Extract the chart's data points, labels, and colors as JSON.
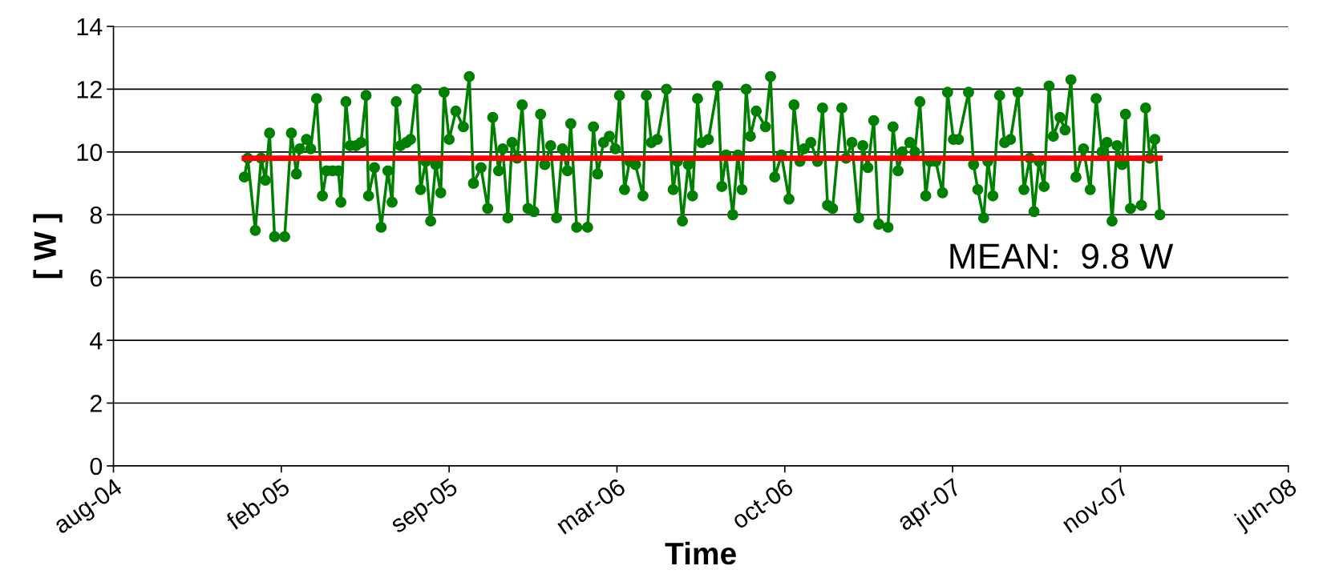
{
  "chart_data": {
    "type": "line",
    "xlabel": "Time",
    "ylabel": "[ W ]",
    "annotations": [
      "MEAN:  9.8 W"
    ],
    "xlim": [
      "2004-08-01",
      "2008-06-01"
    ],
    "xticks": [
      {
        "value": "2004-08-01",
        "label": "aug-04"
      },
      {
        "value": "2005-02-17",
        "label": "feb-05"
      },
      {
        "value": "2005-09-05",
        "label": "sep-05"
      },
      {
        "value": "2006-03-24",
        "label": "mar-06"
      },
      {
        "value": "2006-10-10",
        "label": "oct-06"
      },
      {
        "value": "2007-04-28",
        "label": "apr-07"
      },
      {
        "value": "2007-11-14",
        "label": "nov-07"
      },
      {
        "value": "2008-06-01",
        "label": "jun-08"
      }
    ],
    "ylim": [
      0,
      14
    ],
    "yticks": [
      0,
      2,
      4,
      6,
      8,
      10,
      12,
      14
    ],
    "grid": "y",
    "series": [
      {
        "color": "#008000",
        "marker": "circle",
        "line_style": "solid",
        "x": [
          "2005-01-04",
          "2005-01-08",
          "2005-01-17",
          "2005-01-24",
          "2005-01-29",
          "2005-02-03",
          "2005-02-09",
          "2005-02-21",
          "2005-03-01",
          "2005-03-07",
          "2005-03-11",
          "2005-03-19",
          "2005-03-24",
          "2005-03-31",
          "2005-04-07",
          "2005-04-12",
          "2005-04-19",
          "2005-04-26",
          "2005-04-29",
          "2005-05-05",
          "2005-05-10",
          "2005-05-17",
          "2005-05-23",
          "2005-05-29",
          "2005-06-01",
          "2005-06-08",
          "2005-06-16",
          "2005-06-24",
          "2005-06-29",
          "2005-07-04",
          "2005-07-09",
          "2005-07-16",
          "2005-07-21",
          "2005-07-28",
          "2005-08-02",
          "2005-08-08",
          "2005-08-14",
          "2005-08-20",
          "2005-08-26",
          "2005-08-30",
          "2005-09-05",
          "2005-09-13",
          "2005-09-22",
          "2005-09-29",
          "2005-10-04",
          "2005-10-13",
          "2005-10-21",
          "2005-10-27",
          "2005-11-03",
          "2005-11-08",
          "2005-11-14",
          "2005-11-19",
          "2005-11-25",
          "2005-12-01",
          "2005-12-08",
          "2005-12-15",
          "2005-12-23",
          "2005-12-28",
          "2006-01-04",
          "2006-01-11",
          "2006-01-18",
          "2006-01-24",
          "2006-01-28",
          "2006-02-04",
          "2006-02-17",
          "2006-02-24",
          "2006-03-01",
          "2006-03-08",
          "2006-03-15",
          "2006-03-22",
          "2006-03-27",
          "2006-04-02",
          "2006-04-08",
          "2006-04-15",
          "2006-04-24",
          "2006-04-28",
          "2006-05-04",
          "2006-05-11",
          "2006-05-22",
          "2006-05-30",
          "2006-06-04",
          "2006-06-10",
          "2006-06-17",
          "2006-06-22",
          "2006-06-28",
          "2006-07-03",
          "2006-07-11",
          "2006-07-22",
          "2006-07-27",
          "2006-08-01",
          "2006-08-09",
          "2006-08-15",
          "2006-08-20",
          "2006-08-25",
          "2006-08-30",
          "2006-09-06",
          "2006-09-17",
          "2006-09-23",
          "2006-09-28",
          "2006-10-06",
          "2006-10-15",
          "2006-10-21",
          "2006-10-28",
          "2006-11-02",
          "2006-11-10",
          "2006-11-18",
          "2006-11-24",
          "2006-11-30",
          "2006-12-06",
          "2006-12-17",
          "2006-12-22",
          "2006-12-29",
          "2007-01-06",
          "2007-01-11",
          "2007-01-17",
          "2007-01-24",
          "2007-01-30",
          "2007-02-10",
          "2007-02-16",
          "2007-02-22",
          "2007-02-27",
          "2007-03-08",
          "2007-03-14",
          "2007-03-20",
          "2007-03-27",
          "2007-04-01",
          "2007-04-08",
          "2007-04-16",
          "2007-04-22",
          "2007-04-29",
          "2007-05-05",
          "2007-05-17",
          "2007-05-23",
          "2007-05-28",
          "2007-06-04",
          "2007-06-09",
          "2007-06-15",
          "2007-06-23",
          "2007-06-29",
          "2007-07-06",
          "2007-07-15",
          "2007-07-22",
          "2007-07-29",
          "2007-08-03",
          "2007-08-09",
          "2007-08-15",
          "2007-08-21",
          "2007-08-26",
          "2007-09-03",
          "2007-09-09",
          "2007-09-16",
          "2007-09-22",
          "2007-10-01",
          "2007-10-09",
          "2007-10-16",
          "2007-10-23",
          "2007-10-29",
          "2007-11-04",
          "2007-11-10",
          "2007-11-16",
          "2007-11-20",
          "2007-11-26",
          "2007-12-09",
          "2007-12-14",
          "2007-12-19",
          "2007-12-25",
          "2007-12-31"
        ],
        "values": [
          9.2,
          9.8,
          7.5,
          9.8,
          9.1,
          10.6,
          7.3,
          7.3,
          10.6,
          9.3,
          10.1,
          10.4,
          10.1,
          11.7,
          8.6,
          9.4,
          9.4,
          9.4,
          8.4,
          11.6,
          10.2,
          10.2,
          10.3,
          11.8,
          8.6,
          9.5,
          7.6,
          9.4,
          8.4,
          11.6,
          10.2,
          10.3,
          10.4,
          12.0,
          8.8,
          9.7,
          7.8,
          9.6,
          8.7,
          11.9,
          10.4,
          11.3,
          10.8,
          12.4,
          9.0,
          9.5,
          8.2,
          11.1,
          9.4,
          10.1,
          7.9,
          10.3,
          9.8,
          11.5,
          8.2,
          8.1,
          11.2,
          9.6,
          10.2,
          7.9,
          10.1,
          9.4,
          10.9,
          7.6,
          7.6,
          10.8,
          9.3,
          10.3,
          10.5,
          10.1,
          11.8,
          8.8,
          9.7,
          9.6,
          8.6,
          11.8,
          10.3,
          10.4,
          12.0,
          8.8,
          9.7,
          7.8,
          9.6,
          8.6,
          11.7,
          10.3,
          10.4,
          12.1,
          8.9,
          9.9,
          8.0,
          9.9,
          8.8,
          12.0,
          10.5,
          11.3,
          10.8,
          12.4,
          9.2,
          9.9,
          8.5,
          11.5,
          9.7,
          10.1,
          10.3,
          9.7,
          11.4,
          8.3,
          8.2,
          11.4,
          9.8,
          10.3,
          7.9,
          10.2,
          9.5,
          11.0,
          7.7,
          7.6,
          10.8,
          9.4,
          10.0,
          10.3,
          10.0,
          11.6,
          8.6,
          9.7,
          9.7,
          8.7,
          11.9,
          10.4,
          10.4,
          11.9,
          9.6,
          8.8,
          7.9,
          9.7,
          8.6,
          11.8,
          10.3,
          10.4,
          11.9,
          8.8,
          9.8,
          8.1,
          9.7,
          8.9,
          12.1,
          10.5,
          11.1,
          10.7,
          12.3,
          9.2,
          10.1,
          8.8,
          11.7,
          10.0,
          10.3,
          7.8,
          10.2,
          9.6,
          11.2,
          8.2,
          8.3,
          11.4,
          9.8,
          10.4,
          8.0
        ]
      },
      {
        "color": "#ff0000",
        "marker": "none",
        "line_style": "solid",
        "x": [
          "2005-01-04",
          "2007-12-31"
        ],
        "values": [
          9.8,
          9.8
        ]
      }
    ]
  }
}
